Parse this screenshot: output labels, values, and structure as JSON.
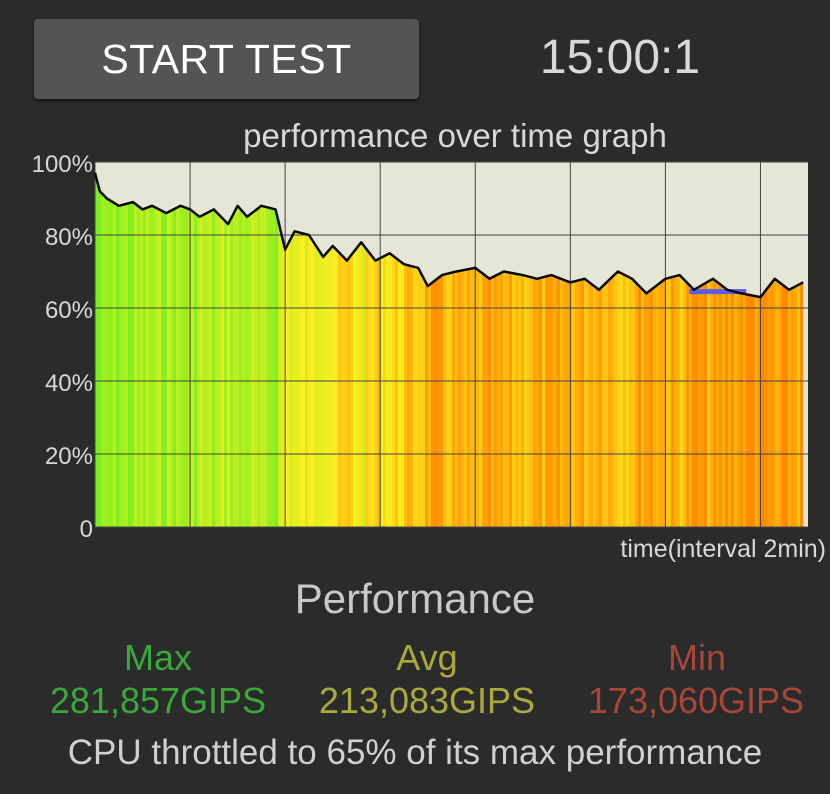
{
  "header": {
    "start_label": "START TEST",
    "timer": "15:00:1"
  },
  "graph": {
    "title": "performance over time graph",
    "x_label": "time(interval 2min)",
    "y_ticks": [
      "100%",
      "80%",
      "60%",
      "40%",
      "20%",
      "0"
    ]
  },
  "chart_data": {
    "type": "area",
    "title": "performance over time graph",
    "xlabel": "time(interval 2min)",
    "ylabel": "",
    "ylim": [
      0,
      100
    ],
    "xlim": [
      0,
      15
    ],
    "x_interval": 2,
    "grid": true,
    "yticks": [
      0,
      20,
      40,
      60,
      80,
      100
    ],
    "series": [
      {
        "x": [
          0,
          0.1,
          0.25,
          0.5,
          0.8,
          1.0,
          1.2,
          1.5,
          1.8,
          2.0,
          2.2,
          2.5,
          2.8,
          3.0,
          3.2,
          3.5,
          3.8,
          4.0,
          4.2,
          4.5,
          4.8,
          5.0,
          5.3,
          5.6,
          5.9,
          6.2,
          6.5,
          6.8,
          7.0,
          7.3,
          7.6,
          8.0,
          8.3,
          8.6,
          9.0,
          9.3,
          9.6,
          10.0,
          10.3,
          10.6,
          11.0,
          11.3,
          11.6,
          12.0,
          12.3,
          12.6,
          13.0,
          13.3,
          13.6,
          14.0,
          14.3,
          14.6,
          14.9
        ],
        "values": [
          97,
          92,
          90,
          88,
          89,
          87,
          88,
          86,
          88,
          87,
          85,
          87,
          83,
          88,
          85,
          88,
          87,
          76,
          81,
          80,
          74,
          77,
          73,
          78,
          73,
          75,
          72,
          71,
          66,
          69,
          70,
          71,
          68,
          70,
          69,
          68,
          69,
          67,
          68,
          65,
          70,
          68,
          64,
          68,
          69,
          65,
          68,
          65,
          64,
          63,
          68,
          65,
          67
        ]
      }
    ],
    "annotations": [
      {
        "type": "band",
        "x_start": 12.5,
        "x_end": 13.7,
        "y": 64.5,
        "color": "#5b5bf0"
      }
    ],
    "colors": {
      "plot_background": "#e6e6d6",
      "fill_high": "#7cf020",
      "fill_mid": "#ffee20",
      "fill_low": "#ff8a00",
      "line": "#0a0a0a"
    }
  },
  "performance": {
    "title": "Performance",
    "max_label": "Max",
    "avg_label": "Avg",
    "min_label": "Min",
    "max_value": "281,857GIPS",
    "avg_value": "213,083GIPS",
    "min_value": "173,060GIPS",
    "colors": {
      "max": "#3aa83a",
      "avg": "#a9a93c",
      "min": "#a8463a"
    }
  },
  "footer": {
    "message": "CPU throttled to 65% of its max performance"
  }
}
